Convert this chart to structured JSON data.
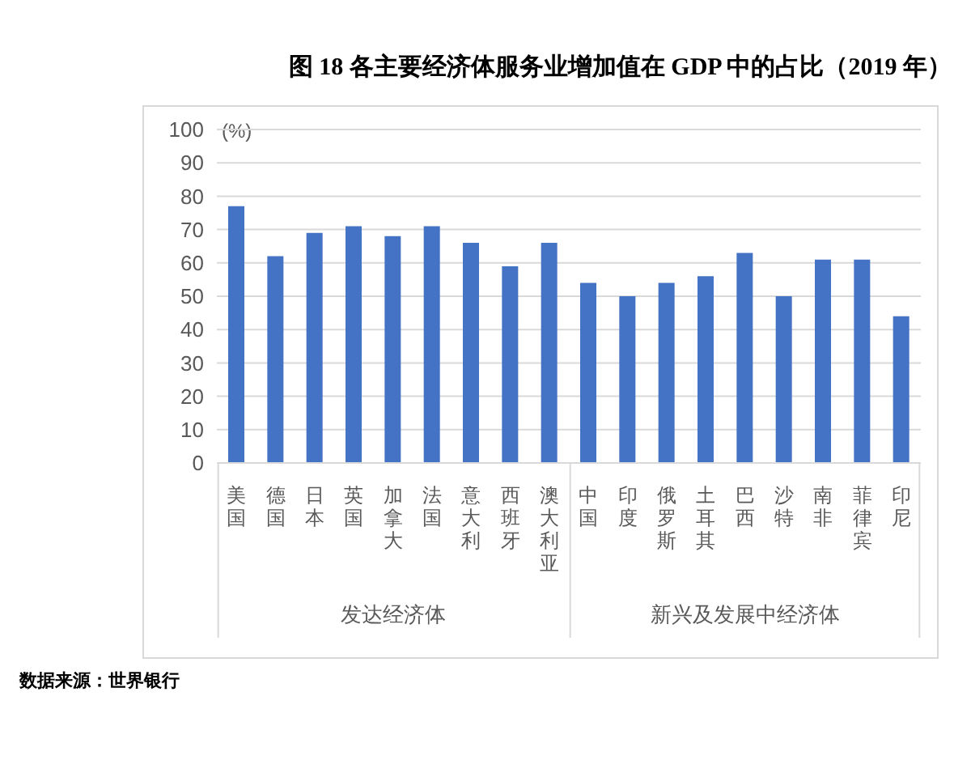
{
  "chart_data": {
    "type": "bar",
    "title": "图 18  各主要经济体服务业增加值在 GDP 中的占比（2019 年）",
    "ylabel": "(%)",
    "categories": [
      "美国",
      "德国",
      "日本",
      "英国",
      "加拿大",
      "法国",
      "意大利",
      "西班牙",
      "澳大利亚",
      "中国",
      "印度",
      "俄罗斯",
      "土耳其",
      "巴西",
      "沙特",
      "南非",
      "菲律宾",
      "印尼"
    ],
    "values": [
      77,
      62,
      69,
      71,
      68,
      71,
      66,
      59,
      66,
      54,
      50,
      54,
      56,
      63,
      50,
      61,
      61,
      44
    ],
    "color": "#4472c4",
    "ylim": [
      0,
      100
    ],
    "yticks": [
      0,
      10,
      20,
      30,
      40,
      50,
      60,
      70,
      80,
      90,
      100
    ],
    "grid": "y",
    "legend": false,
    "annotations": [
      "发达经济体",
      "新兴及发展中经济体",
      "数据来源：世界银行"
    ]
  }
}
